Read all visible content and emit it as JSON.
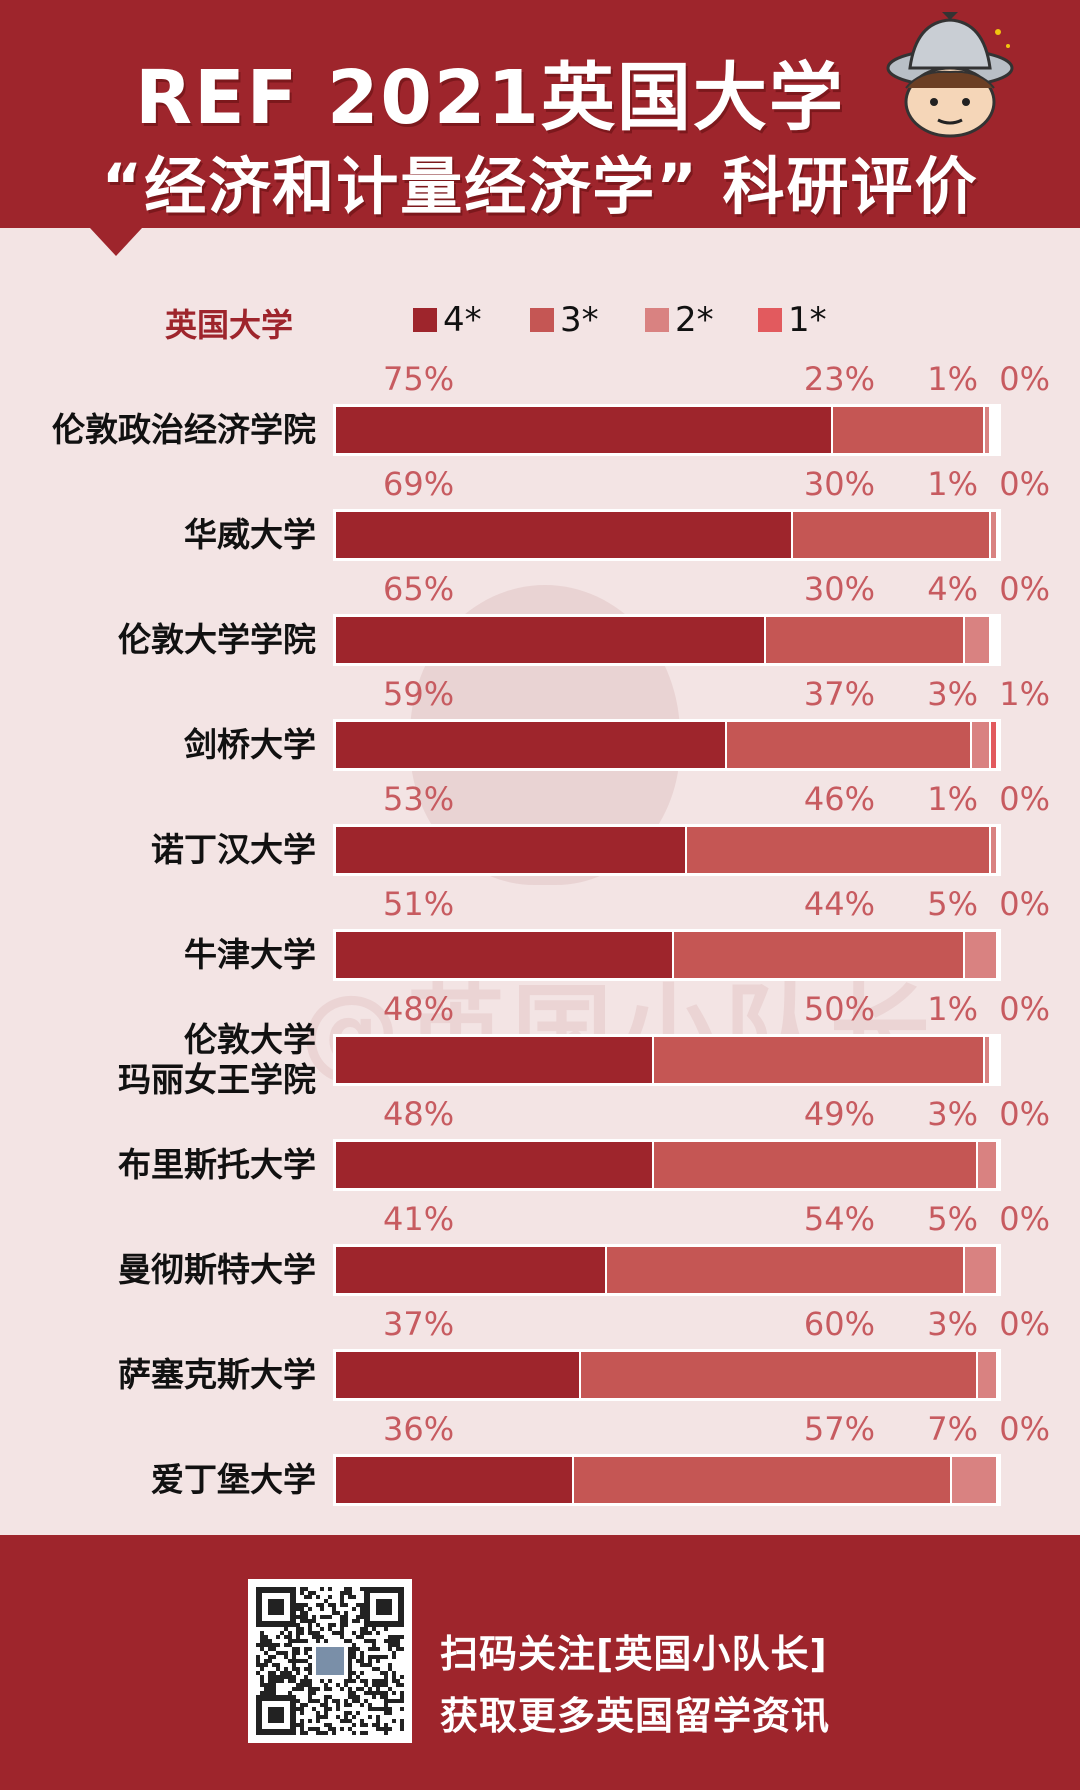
{
  "header": {
    "title_line_1": "REF 2021英国大学",
    "title_line_2": "“经济和计量经济学” 科研评价"
  },
  "colors": {
    "brand": "#9e252c",
    "star4": "#9e252c",
    "star3": "#c55654",
    "star2": "#d98281",
    "star1": "#e25a5e",
    "label": "#c75b60",
    "background": "#f3e4e4"
  },
  "watermark": "@英国小队长",
  "legend": {
    "title": "英国大学",
    "items": [
      {
        "label": "4*",
        "color": "#9e252c"
      },
      {
        "label": "3*",
        "color": "#c55654"
      },
      {
        "label": "2*",
        "color": "#d98281"
      },
      {
        "label": "1*",
        "color": "#e25a5e"
      }
    ]
  },
  "chart_data": {
    "type": "bar",
    "orientation": "horizontal",
    "stacked": true,
    "title": "",
    "xlim": [
      0,
      100
    ],
    "unit": "%",
    "series": [
      {
        "name": "4*",
        "color": "#9e252c"
      },
      {
        "name": "3*",
        "color": "#c55654"
      },
      {
        "name": "2*",
        "color": "#d98281"
      },
      {
        "name": "1*",
        "color": "#e25a5e"
      }
    ],
    "categories": [
      "伦敦政治经济学院",
      "华威大学",
      "伦敦大学学院",
      "剑桥大学",
      "诺丁汉大学",
      "牛津大学",
      "伦敦大学\n玛丽女王学院",
      "布里斯托大学",
      "曼彻斯特大学",
      "萨塞克斯大学",
      "爱丁堡大学"
    ],
    "values": [
      [
        75,
        23,
        1,
        0
      ],
      [
        69,
        30,
        1,
        0
      ],
      [
        65,
        30,
        4,
        0
      ],
      [
        59,
        37,
        3,
        1
      ],
      [
        53,
        46,
        1,
        0
      ],
      [
        51,
        44,
        5,
        0
      ],
      [
        48,
        50,
        1,
        0
      ],
      [
        48,
        49,
        3,
        0
      ],
      [
        41,
        54,
        5,
        0
      ],
      [
        37,
        60,
        3,
        0
      ],
      [
        36,
        57,
        7,
        0
      ]
    ]
  },
  "footer": {
    "line_1": "扫码关注[英国小队长]",
    "line_2": "获取更多英国留学资讯"
  }
}
